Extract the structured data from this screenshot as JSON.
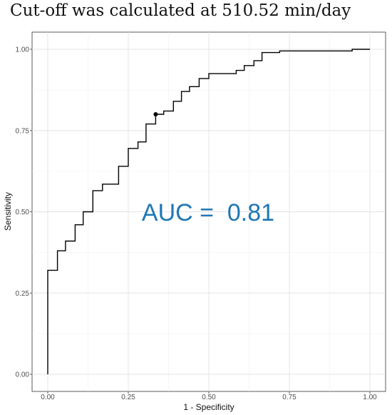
{
  "chart_data": {
    "type": "line",
    "title": "Cut-off was calculated at 510.52 min/day",
    "xlabel": "1 - Specificity",
    "ylabel": "Sensitivity",
    "xlim": [
      0,
      1
    ],
    "ylim": [
      0,
      1
    ],
    "xticks": [
      "0.00",
      "0.25",
      "0.50",
      "0.75",
      "1.00"
    ],
    "yticks": [
      "0.00",
      "0.25",
      "0.50",
      "0.75",
      "1.00"
    ],
    "grid": true,
    "annotation": "AUC =  0.81",
    "annotation_color": "#1f77b4",
    "line_color": "#000000",
    "series": [
      {
        "step": "horizontal-first",
        "x": [
          0.0,
          0.0,
          0.03,
          0.03,
          0.055,
          0.055,
          0.085,
          0.085,
          0.11,
          0.11,
          0.14,
          0.14,
          0.17,
          0.17,
          0.22,
          0.22,
          0.25,
          0.25,
          0.28,
          0.28,
          0.305,
          0.305,
          0.335,
          0.335,
          0.36,
          0.36,
          0.39,
          0.39,
          0.415,
          0.415,
          0.44,
          0.44,
          0.47,
          0.47,
          0.5,
          0.5,
          0.585,
          0.585,
          0.61,
          0.61,
          0.64,
          0.64,
          0.665,
          0.665,
          0.72,
          0.72,
          0.945,
          0.945,
          1.0
        ],
        "y": [
          0.0,
          0.32,
          0.32,
          0.38,
          0.38,
          0.41,
          0.41,
          0.46,
          0.46,
          0.5,
          0.5,
          0.565,
          0.565,
          0.585,
          0.585,
          0.64,
          0.64,
          0.695,
          0.695,
          0.715,
          0.715,
          0.77,
          0.77,
          0.8,
          0.8,
          0.81,
          0.81,
          0.84,
          0.84,
          0.87,
          0.87,
          0.885,
          0.885,
          0.91,
          0.91,
          0.925,
          0.925,
          0.935,
          0.935,
          0.95,
          0.95,
          0.965,
          0.965,
          0.99,
          0.99,
          0.995,
          0.995,
          1.0,
          1.0
        ]
      }
    ],
    "cutoff_point": {
      "x": 0.335,
      "y": 0.8
    }
  }
}
